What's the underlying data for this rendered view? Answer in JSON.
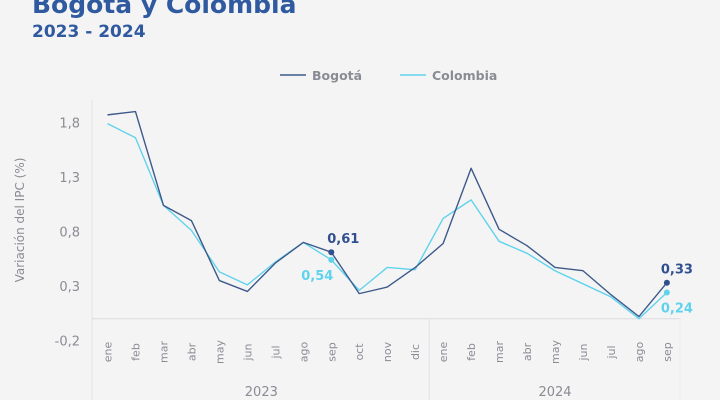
{
  "header": {
    "title": "Bogotá y Colombia",
    "subtitle": "2023 - 2024"
  },
  "chart_data": {
    "type": "line",
    "title": "Bogotá y Colombia",
    "subtitle": "2023 - 2024",
    "xlabel": "",
    "ylabel": "Variación del IPC (%)",
    "ylim": [
      -0.2,
      1.8
    ],
    "yticks": [
      1.8,
      1.3,
      0.8,
      0.3,
      -0.2
    ],
    "ytick_labels": [
      "1,8",
      "1,3",
      "0,8",
      "0,3",
      "-0,2"
    ],
    "categories": [
      "ene",
      "feb",
      "mar",
      "abr",
      "may",
      "jun",
      "jul",
      "ago",
      "sep",
      "oct",
      "nov",
      "dic",
      "ene",
      "feb",
      "mar",
      "abr",
      "may",
      "jun",
      "jul",
      "ago",
      "sep"
    ],
    "groups": [
      {
        "label": "2023",
        "count": 12
      },
      {
        "label": "2024",
        "count": 9
      }
    ],
    "legend_position": "top",
    "series": [
      {
        "name": "Bogotá",
        "color": "#3d5a8a",
        "values": [
          1.87,
          1.9,
          1.04,
          0.9,
          0.35,
          0.25,
          0.51,
          0.7,
          0.61,
          0.23,
          0.29,
          0.47,
          0.69,
          1.38,
          0.82,
          0.67,
          0.47,
          0.44,
          0.22,
          0.02,
          0.33
        ]
      },
      {
        "name": "Colombia",
        "color": "#5fd3ec",
        "values": [
          1.79,
          1.66,
          1.04,
          0.81,
          0.43,
          0.31,
          0.52,
          0.7,
          0.54,
          0.26,
          0.47,
          0.45,
          0.92,
          1.09,
          0.71,
          0.6,
          0.44,
          0.32,
          0.2,
          0.0,
          0.24
        ]
      }
    ],
    "annotations": [
      {
        "series": 0,
        "index": 8,
        "label": "0,61"
      },
      {
        "series": 1,
        "index": 8,
        "label": "0,54"
      },
      {
        "series": 0,
        "index": 20,
        "label": "0,33"
      },
      {
        "series": 1,
        "index": 20,
        "label": "0,24"
      }
    ]
  }
}
